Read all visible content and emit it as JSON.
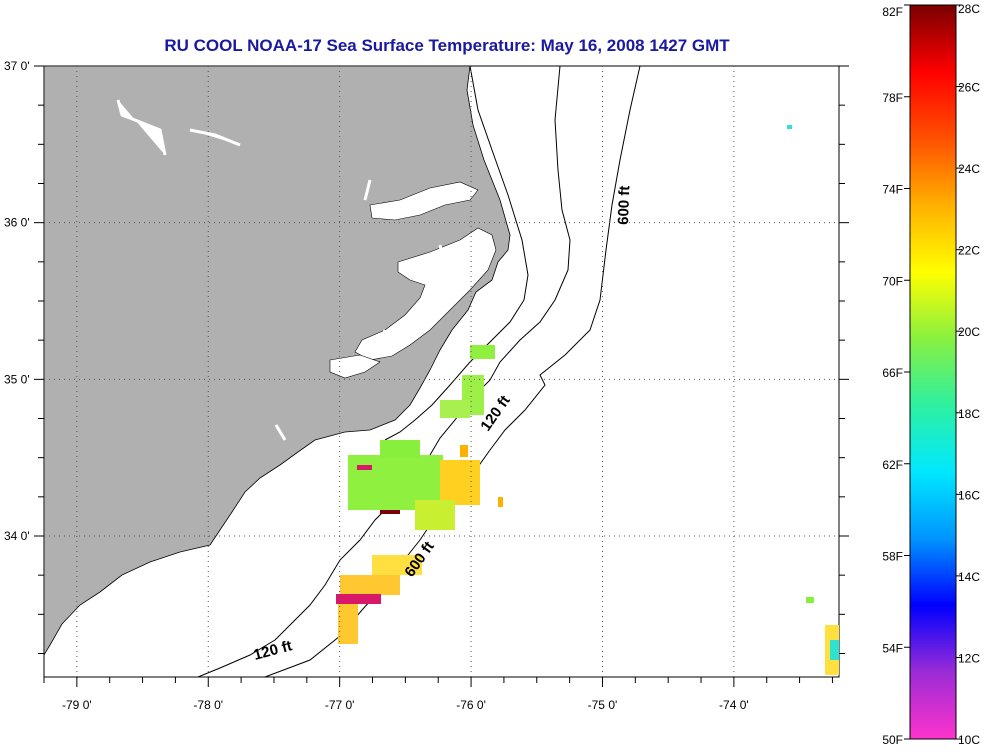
{
  "title": "RU COOL  NOAA-17  Sea Surface Temperature:  May 16, 2008 1427 GMT",
  "map": {
    "lat_range": [
      33.1,
      37.0
    ],
    "lon_range": [
      -79.25,
      -73.2
    ],
    "lat_ticks": [
      "37 0'",
      "36 0'",
      "35 0'",
      "34 0'"
    ],
    "lon_ticks": [
      "-79 0'",
      "-78 0'",
      "-77 0'",
      "-76 0'",
      "-75 0'",
      "-74 0'"
    ],
    "gridlines": true,
    "land_color": "#b0b0b0",
    "contours": [
      {
        "label": "600 ft"
      },
      {
        "label": "120 ft"
      },
      {
        "label": "600 ft"
      },
      {
        "label": "120 ft"
      }
    ]
  },
  "colorbar": {
    "fahrenheit_labels": [
      "82F",
      "78F",
      "74F",
      "70F",
      "66F",
      "62F",
      "58F",
      "54F",
      "50F"
    ],
    "celsius_labels": [
      "28C",
      "26C",
      "24C",
      "22C",
      "20C",
      "18C",
      "16C",
      "14C",
      "12C",
      "10C"
    ],
    "colors": [
      "#ff33cc",
      "#9b2cd6",
      "#0000ff",
      "#0095ff",
      "#00e8ff",
      "#2ef0a0",
      "#88f040",
      "#ffff00",
      "#ffb000",
      "#ff5000",
      "#ff0000",
      "#7a0000"
    ]
  }
}
